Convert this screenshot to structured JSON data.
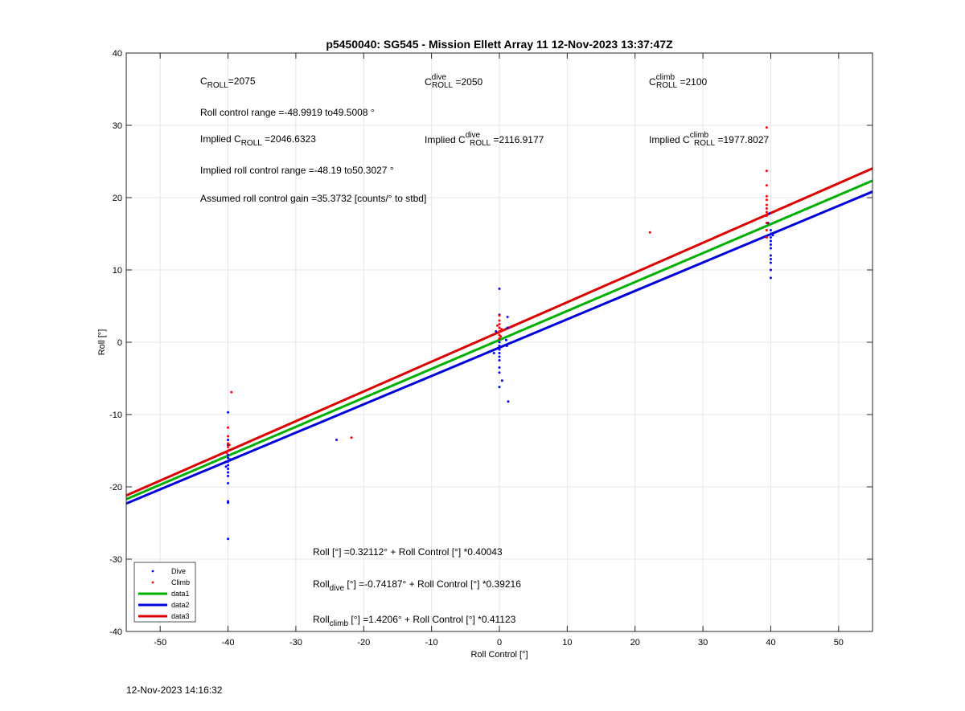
{
  "chart_data": {
    "type": "scatter",
    "title": "p5450040: SG545 - Mission Ellett Array 11 12-Nov-2023 13:37:47Z",
    "xlabel": "Roll Control [°]",
    "ylabel": "Roll [°]",
    "xlim": [
      -55,
      55
    ],
    "ylim": [
      -40,
      40
    ],
    "xticks": [
      "-50",
      "-40",
      "-30",
      "-20",
      "-10",
      "0",
      "10",
      "20",
      "30",
      "40",
      "50"
    ],
    "yticks": [
      "-40",
      "-30",
      "-20",
      "-10",
      "0",
      "10",
      "20",
      "30",
      "40"
    ],
    "grid": true,
    "legend_position": "bottom-left",
    "colors": {
      "dive": "#0000ff",
      "climb": "#ff0000",
      "data1": "#00b000",
      "data2": "#0000dd",
      "data3": "#dd0000"
    },
    "legend": [
      "Dive",
      "Climb",
      "data1",
      "data2",
      "data3"
    ],
    "lines": [
      {
        "name": "data1",
        "intercept": 0.32112,
        "slope": 0.40043
      },
      {
        "name": "data2",
        "intercept": -0.74187,
        "slope": 0.39216
      },
      {
        "name": "data3",
        "intercept": 1.4206,
        "slope": 0.41123
      }
    ],
    "series": [
      {
        "name": "Dive",
        "points": [
          [
            -40,
            -9.7
          ],
          [
            -40,
            -13.5
          ],
          [
            -40,
            -14.2
          ],
          [
            -40,
            -15.0
          ],
          [
            -40,
            -15.6
          ],
          [
            -40,
            -16.0
          ],
          [
            -40,
            -16.5
          ],
          [
            -40,
            -17.0
          ],
          [
            -40,
            -17.5
          ],
          [
            -40,
            -18.0
          ],
          [
            -40,
            -18.5
          ],
          [
            -40,
            -19.5
          ],
          [
            -40,
            -22.0
          ],
          [
            -40,
            -22.2
          ],
          [
            -40,
            -27.2
          ],
          [
            -39.7,
            -16.2
          ],
          [
            -40.3,
            -17.2
          ],
          [
            -24,
            -13.5
          ],
          [
            0,
            7.4
          ],
          [
            0,
            3.8
          ],
          [
            0,
            2.0
          ],
          [
            0,
            1.0
          ],
          [
            0,
            0.5
          ],
          [
            0,
            0
          ],
          [
            0,
            -0.5
          ],
          [
            0,
            -1.0
          ],
          [
            0,
            -1.5
          ],
          [
            0,
            -2.0
          ],
          [
            0,
            -2.5
          ],
          [
            0,
            -3.5
          ],
          [
            0,
            -4.2
          ],
          [
            0,
            -6.2
          ],
          [
            0.4,
            -5.3
          ],
          [
            1.3,
            -8.2
          ],
          [
            1.2,
            3.5
          ],
          [
            1.2,
            2.0
          ],
          [
            1.0,
            0.3
          ],
          [
            1.1,
            -0.5
          ],
          [
            -0.5,
            1.5
          ],
          [
            -0.8,
            -1.5
          ],
          [
            40,
            15.5
          ],
          [
            40,
            15.0
          ],
          [
            40,
            14.5
          ],
          [
            40,
            14.0
          ],
          [
            40,
            13.5
          ],
          [
            40,
            13.0
          ],
          [
            40,
            12.0
          ],
          [
            40,
            11.5
          ],
          [
            40,
            11.0
          ],
          [
            40,
            10.0
          ],
          [
            40,
            8.9
          ],
          [
            39.6,
            16.5
          ],
          [
            39.8,
            17.8
          ],
          [
            40.3,
            14.8
          ]
        ]
      },
      {
        "name": "Climb",
        "points": [
          [
            -39.5,
            -6.9
          ],
          [
            -40,
            -11.8
          ],
          [
            -40,
            -13.0
          ],
          [
            -40,
            -14.0
          ],
          [
            -40,
            -14.5
          ],
          [
            -40,
            -15.0
          ],
          [
            -39.8,
            -14.2
          ],
          [
            -40.2,
            -15.3
          ],
          [
            -21.8,
            -13.2
          ],
          [
            0,
            3.7
          ],
          [
            0,
            3.0
          ],
          [
            0,
            2.5
          ],
          [
            0,
            2.0
          ],
          [
            0,
            1.5
          ],
          [
            0,
            1.0
          ],
          [
            0,
            0.5
          ],
          [
            0.3,
            1.8
          ],
          [
            0.2,
            0.8
          ],
          [
            -0.3,
            2.3
          ],
          [
            22.2,
            15.2
          ],
          [
            39.4,
            29.7
          ],
          [
            39.4,
            23.7
          ],
          [
            39.4,
            21.7
          ],
          [
            39.4,
            20.2
          ],
          [
            39.4,
            19.7
          ],
          [
            39.4,
            19.0
          ],
          [
            39.4,
            18.5
          ],
          [
            39.4,
            18.0
          ],
          [
            39.4,
            17.5
          ],
          [
            39.4,
            16.5
          ],
          [
            39.4,
            15.5
          ],
          [
            39.4,
            14.5
          ]
        ]
      }
    ],
    "annotations": {
      "c_roll": "C",
      "c_roll_sub": "ROLL",
      "c_roll_val": "=2075",
      "c_dive": "C",
      "c_dive_sup": "dive",
      "c_dive_sub": "ROLL",
      "c_dive_val": " =2050",
      "c_climb": "C",
      "c_climb_sup": "climb",
      "c_climb_sub": "ROLL",
      "c_climb_val": " =2100",
      "range": "Roll control range =-48.9919 to49.5008 °",
      "implied_prefix": "Implied C",
      "implied_sub": "ROLL",
      "implied_val": " =2046.6323",
      "implied_dive_prefix": "Implied C",
      "implied_dive_sup": "dive",
      "implied_dive_sub": "ROLL",
      "implied_dive_val": " =2116.9177",
      "implied_climb_prefix": "Implied C",
      "implied_climb_sup": "climb",
      "implied_climb_sub": "ROLL",
      "implied_climb_val": " =1977.8027",
      "implied_range": "Implied roll control range =-48.19 to50.3027 °",
      "gain": "Assumed roll control gain =35.3732 [counts/° to stbd]",
      "eq1": "Roll [°] =0.32112° + Roll Control [°] *0.40043",
      "eq2_a": "Roll",
      "eq2_sub": "dive",
      "eq2_b": " [°] =-0.74187° + Roll Control [°] *0.39216",
      "eq3_a": "Roll",
      "eq3_sub": "climb",
      "eq3_b": " [°] =1.4206° + Roll Control [°] *0.41123"
    }
  },
  "footer_timestamp": "12-Nov-2023 14:16:32"
}
